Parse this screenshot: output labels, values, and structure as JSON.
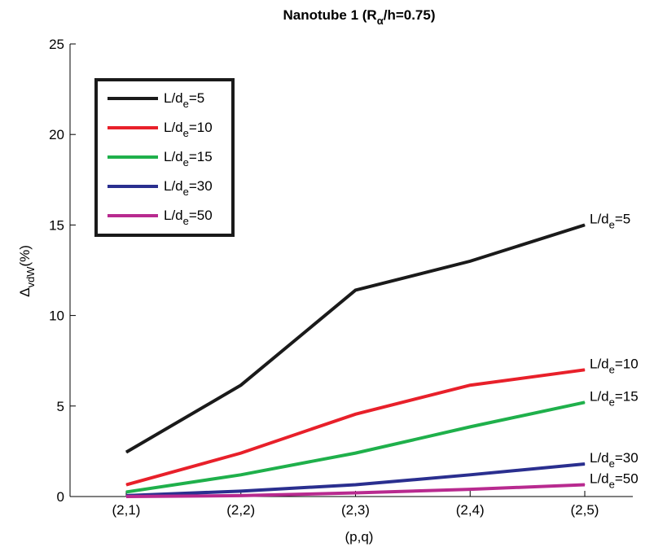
{
  "chart_data": {
    "type": "line",
    "title_main": "Nanotube 1 (R",
    "title_sub": "α",
    "title_tail": "/h=0.75)",
    "xlabel": "(p,q)",
    "ylabel_main": "Δ",
    "ylabel_sub": "vdW",
    "ylabel_tail": "(%)",
    "categories": [
      "(2,1)",
      "(2,2)",
      "(2,3)",
      "(2,4)",
      "(2,5)"
    ],
    "ylim": [
      0,
      25
    ],
    "yticks": [
      "0",
      "5",
      "10",
      "15",
      "20",
      "25"
    ],
    "grid": false,
    "legend_position": "top-left",
    "series": [
      {
        "label_main": "L/d",
        "label_sub": "e",
        "label_tail": "=5",
        "color": "#1a1a1a",
        "values": [
          2.45,
          6.15,
          11.4,
          13.0,
          15.0
        ]
      },
      {
        "label_main": "L/d",
        "label_sub": "e",
        "label_tail": "=10",
        "color": "#e8202a",
        "values": [
          0.65,
          2.4,
          4.55,
          6.15,
          7.0
        ]
      },
      {
        "label_main": "L/d",
        "label_sub": "e",
        "label_tail": "=15",
        "color": "#1fb04b",
        "values": [
          0.25,
          1.2,
          2.4,
          3.85,
          5.2
        ]
      },
      {
        "label_main": "L/d",
        "label_sub": "e",
        "label_tail": "=30",
        "color": "#2a2f8f",
        "values": [
          0.05,
          0.3,
          0.65,
          1.2,
          1.8
        ]
      },
      {
        "label_main": "L/d",
        "label_sub": "e",
        "label_tail": "=50",
        "color": "#b82a8f",
        "values": [
          0.0,
          0.05,
          0.2,
          0.4,
          0.65
        ]
      }
    ]
  }
}
